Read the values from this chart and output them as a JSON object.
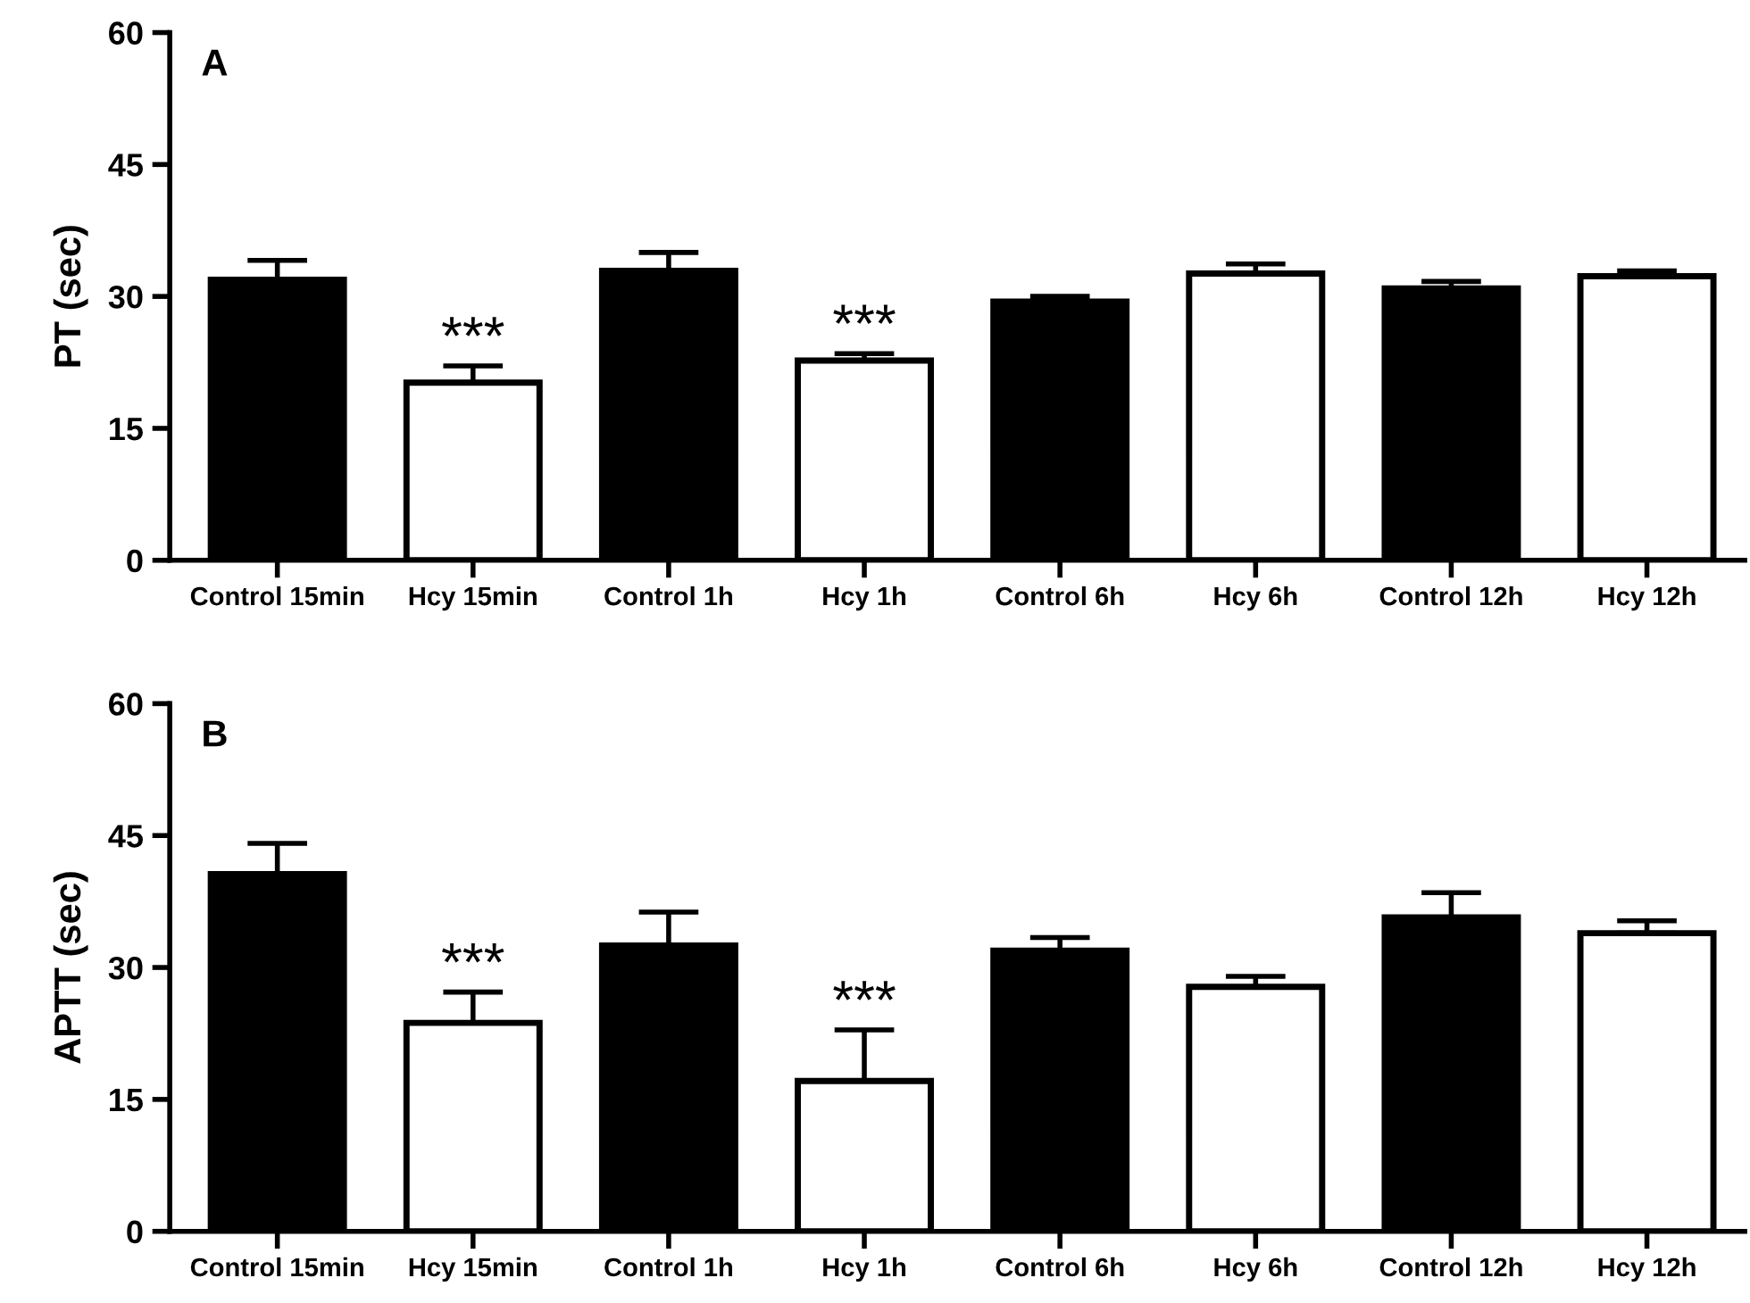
{
  "chart_data": [
    {
      "type": "bar",
      "title": "A",
      "ylabel": "PT (sec)",
      "categories": [
        "Control 15min",
        "Hcy 15min",
        "Control 1h",
        "Hcy 1h",
        "Control 6h",
        "Hcy 6h",
        "Control 12h",
        "Hcy 12h"
      ],
      "values": [
        31.9,
        20.2,
        32.9,
        22.7,
        29.4,
        32.6,
        30.9,
        32.3
      ],
      "errors": [
        [
          31.9,
          34.1
        ],
        [
          20.2,
          22.1
        ],
        [
          32.9,
          35.0
        ],
        [
          22.7,
          23.5
        ],
        [
          29.4,
          30.0
        ],
        [
          32.6,
          33.7
        ],
        [
          30.9,
          31.7
        ],
        [
          32.3,
          32.9
        ]
      ],
      "colors": [
        "#000000",
        "#ffffff",
        "#000000",
        "#ffffff",
        "#000000",
        "#ffffff",
        "#000000",
        "#ffffff"
      ],
      "ylim": [
        0,
        60
      ],
      "yticks": [
        0,
        15,
        30,
        45,
        60
      ],
      "grid": false,
      "annotations": [
        {
          "text": "***",
          "x": "Hcy 15min",
          "y": 22.1
        },
        {
          "text": "***",
          "x": "Hcy 1h",
          "y": 23.5
        }
      ]
    },
    {
      "type": "bar",
      "title": "B",
      "ylabel": "APTT (sec)",
      "categories": [
        "Control 15min",
        "Hcy 15min",
        "Control 1h",
        "Hcy 1h",
        "Control 6h",
        "Hcy 6h",
        "Control 12h",
        "Hcy 12h"
      ],
      "values": [
        40.6,
        23.7,
        32.5,
        17.1,
        31.9,
        27.8,
        35.7,
        33.9
      ],
      "errors": [
        [
          40.6,
          44.1
        ],
        [
          23.7,
          27.2
        ],
        [
          32.5,
          36.3
        ],
        [
          17.1,
          22.9
        ],
        [
          31.9,
          33.4
        ],
        [
          27.8,
          29.0
        ],
        [
          35.7,
          38.5
        ],
        [
          33.9,
          35.3
        ]
      ],
      "colors": [
        "#000000",
        "#ffffff",
        "#000000",
        "#ffffff",
        "#000000",
        "#ffffff",
        "#000000",
        "#ffffff"
      ],
      "ylim": [
        0,
        60
      ],
      "yticks": [
        0,
        15,
        30,
        45,
        60
      ],
      "grid": false,
      "annotations": [
        {
          "text": "***",
          "x": "Hcy 15min",
          "y": 27.2
        },
        {
          "text": "***",
          "x": "Hcy 1h",
          "y": 22.9
        }
      ]
    }
  ]
}
